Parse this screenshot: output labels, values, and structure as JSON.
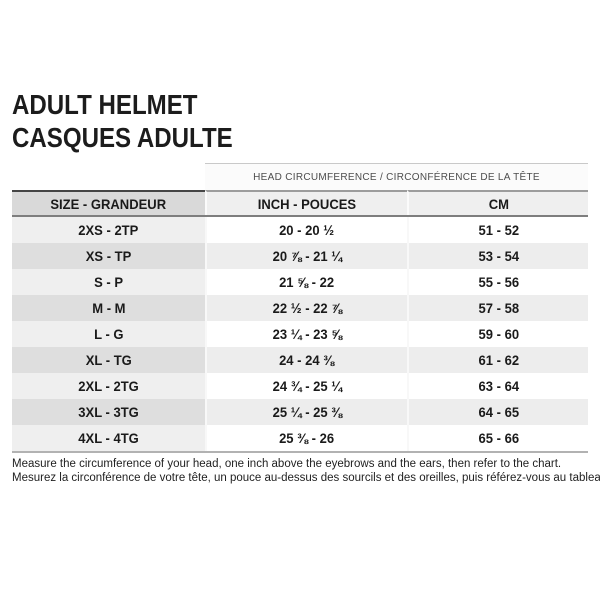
{
  "title": {
    "line1": "ADULT HELMET",
    "line2": "CASQUES ADULTE"
  },
  "table": {
    "span_header": "HEAD CIRCUMFERENCE / CIRCONFÉRENCE DE LA TÊTE",
    "columns": [
      "SIZE - GRANDEUR",
      "INCH - POUCES",
      "CM"
    ],
    "rows": [
      {
        "size": "2XS - 2TP",
        "inch": "20 - 20 ½",
        "cm": "51 - 52"
      },
      {
        "size": "XS - TP",
        "inch": "20 ⅞ - 21 ¼",
        "cm": "53 - 54"
      },
      {
        "size": "S - P",
        "inch": "21 ⅝ - 22",
        "cm": "55 - 56"
      },
      {
        "size": "M - M",
        "inch": "22 ½ - 22 ⅞",
        "cm": "57 - 58"
      },
      {
        "size": "L - G",
        "inch": "23 ¼ - 23 ⅝",
        "cm": "59 - 60"
      },
      {
        "size": "XL - TG",
        "inch": "24 - 24 ⅜",
        "cm": "61 - 62"
      },
      {
        "size": "2XL - 2TG",
        "inch": "24 ¾ - 25 ¼",
        "cm": "63 - 64"
      },
      {
        "size": "3XL - 3TG",
        "inch": "25 ¼ - 25 ⅜",
        "cm": "64 - 65"
      },
      {
        "size": "4XL - 4TG",
        "inch": "25 ⅜ - 26",
        "cm": "65 - 66"
      }
    ]
  },
  "footer": {
    "line1": "Measure the circumference of your head, one inch above the eyebrows and the ears, then refer to the chart.",
    "line2": "Mesurez la circonférence de votre tête, un pouce au-dessus des sourcils et des oreilles, puis référez-vous au tableau."
  },
  "colors": {
    "size_header_bg": "#d9d9d9",
    "data_header_bg": "#efefef",
    "row_odd_size_bg": "#efefef",
    "row_odd_data_bg": "#ffffff",
    "row_even_size_bg": "#dedede",
    "row_even_data_bg": "#ededed",
    "header_top_border_dark": "#454545",
    "header_bottom_border": "#7e7e7e",
    "table_bottom_border": "#b2b2b2",
    "text": "#1a1a1a"
  }
}
